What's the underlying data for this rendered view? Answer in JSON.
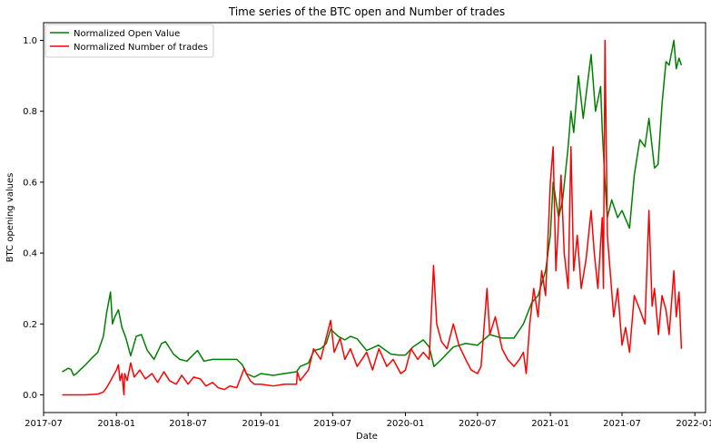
{
  "chart_data": {
    "type": "line",
    "title": "Time series of the BTC open and Number of trades",
    "xlabel": "Date",
    "ylabel": "BTC opening values",
    "xlim": [
      "2017-07-01",
      "2022-01-28"
    ],
    "ylim": [
      -0.05,
      1.05
    ],
    "x_ticks": [
      "2017-07",
      "2018-01",
      "2018-07",
      "2019-01",
      "2019-07",
      "2020-01",
      "2020-07",
      "2021-01",
      "2021-07",
      "2022-01"
    ],
    "x_tick_labels": [
      "2017-07",
      "2018-01",
      "2018-07",
      "2019-01",
      "2019-07",
      "2020-01",
      "2020-07",
      "2021-01",
      "2021-07",
      "2022-01"
    ],
    "y_ticks": [
      0.0,
      0.2,
      0.4,
      0.6,
      0.8,
      1.0
    ],
    "y_tick_labels": [
      "0.0",
      "0.2",
      "0.4",
      "0.6",
      "0.8",
      "1.0"
    ],
    "grid": false,
    "legend_position": "top-left",
    "series": [
      {
        "name": "Normalized Open Value",
        "color": "#008000",
        "points": [
          [
            "2017-08-17",
            0.065
          ],
          [
            "2017-08-25",
            0.07
          ],
          [
            "2017-09-01",
            0.075
          ],
          [
            "2017-09-08",
            0.072
          ],
          [
            "2017-09-15",
            0.055
          ],
          [
            "2017-09-22",
            0.06
          ],
          [
            "2017-10-01",
            0.07
          ],
          [
            "2017-10-15",
            0.085
          ],
          [
            "2017-11-01",
            0.105
          ],
          [
            "2017-11-15",
            0.12
          ],
          [
            "2017-11-29",
            0.165
          ],
          [
            "2017-12-07",
            0.23
          ],
          [
            "2017-12-17",
            0.29
          ],
          [
            "2017-12-22",
            0.2
          ],
          [
            "2017-12-28",
            0.22
          ],
          [
            "2018-01-06",
            0.24
          ],
          [
            "2018-01-15",
            0.19
          ],
          [
            "2018-01-25",
            0.16
          ],
          [
            "2018-02-06",
            0.11
          ],
          [
            "2018-02-20",
            0.165
          ],
          [
            "2018-03-05",
            0.17
          ],
          [
            "2018-03-20",
            0.125
          ],
          [
            "2018-04-06",
            0.1
          ],
          [
            "2018-04-25",
            0.145
          ],
          [
            "2018-05-05",
            0.15
          ],
          [
            "2018-05-25",
            0.115
          ],
          [
            "2018-06-10",
            0.1
          ],
          [
            "2018-06-28",
            0.095
          ],
          [
            "2018-07-25",
            0.125
          ],
          [
            "2018-08-10",
            0.095
          ],
          [
            "2018-09-01",
            0.1
          ],
          [
            "2018-10-01",
            0.1
          ],
          [
            "2018-11-01",
            0.1
          ],
          [
            "2018-11-15",
            0.085
          ],
          [
            "2018-11-25",
            0.06
          ],
          [
            "2018-12-15",
            0.05
          ],
          [
            "2019-01-01",
            0.06
          ],
          [
            "2019-02-01",
            0.055
          ],
          [
            "2019-03-01",
            0.06
          ],
          [
            "2019-04-01",
            0.065
          ],
          [
            "2019-04-10",
            0.08
          ],
          [
            "2019-05-01",
            0.09
          ],
          [
            "2019-05-15",
            0.125
          ],
          [
            "2019-06-01",
            0.13
          ],
          [
            "2019-06-15",
            0.145
          ],
          [
            "2019-06-26",
            0.185
          ],
          [
            "2019-07-15",
            0.165
          ],
          [
            "2019-08-01",
            0.155
          ],
          [
            "2019-08-15",
            0.165
          ],
          [
            "2019-09-01",
            0.158
          ],
          [
            "2019-09-25",
            0.125
          ],
          [
            "2019-10-25",
            0.14
          ],
          [
            "2019-11-25",
            0.115
          ],
          [
            "2019-12-15",
            0.112
          ],
          [
            "2020-01-01",
            0.112
          ],
          [
            "2020-01-20",
            0.135
          ],
          [
            "2020-02-15",
            0.155
          ],
          [
            "2020-03-01",
            0.135
          ],
          [
            "2020-03-13",
            0.08
          ],
          [
            "2020-04-01",
            0.1
          ],
          [
            "2020-05-01",
            0.135
          ],
          [
            "2020-06-01",
            0.145
          ],
          [
            "2020-07-01",
            0.14
          ],
          [
            "2020-08-01",
            0.17
          ],
          [
            "2020-09-01",
            0.16
          ],
          [
            "2020-10-01",
            0.16
          ],
          [
            "2020-10-25",
            0.2
          ],
          [
            "2020-11-15",
            0.26
          ],
          [
            "2020-12-01",
            0.28
          ],
          [
            "2020-12-20",
            0.35
          ],
          [
            "2021-01-01",
            0.45
          ],
          [
            "2021-01-08",
            0.6
          ],
          [
            "2021-01-22",
            0.5
          ],
          [
            "2021-02-01",
            0.55
          ],
          [
            "2021-02-15",
            0.7
          ],
          [
            "2021-02-22",
            0.8
          ],
          [
            "2021-03-01",
            0.74
          ],
          [
            "2021-03-13",
            0.9
          ],
          [
            "2021-03-25",
            0.78
          ],
          [
            "2021-04-05",
            0.88
          ],
          [
            "2021-04-14",
            0.96
          ],
          [
            "2021-04-25",
            0.8
          ],
          [
            "2021-05-08",
            0.87
          ],
          [
            "2021-05-12",
            0.75
          ],
          [
            "2021-05-19",
            0.6
          ],
          [
            "2021-05-25",
            0.5
          ],
          [
            "2021-06-05",
            0.55
          ],
          [
            "2021-06-20",
            0.5
          ],
          [
            "2021-07-01",
            0.52
          ],
          [
            "2021-07-20",
            0.47
          ],
          [
            "2021-08-01",
            0.62
          ],
          [
            "2021-08-15",
            0.72
          ],
          [
            "2021-08-28",
            0.7
          ],
          [
            "2021-09-07",
            0.78
          ],
          [
            "2021-09-21",
            0.64
          ],
          [
            "2021-09-30",
            0.65
          ],
          [
            "2021-10-10",
            0.82
          ],
          [
            "2021-10-20",
            0.94
          ],
          [
            "2021-10-28",
            0.93
          ],
          [
            "2021-11-09",
            1.0
          ],
          [
            "2021-11-15",
            0.92
          ],
          [
            "2021-11-22",
            0.95
          ],
          [
            "2021-11-28",
            0.93
          ]
        ]
      },
      {
        "name": "Normalized Number of trades",
        "color": "#ff0000",
        "points": [
          [
            "2017-08-17",
            0.0
          ],
          [
            "2017-09-15",
            0.0
          ],
          [
            "2017-10-15",
            0.0
          ],
          [
            "2017-11-15",
            0.002
          ],
          [
            "2017-11-29",
            0.008
          ],
          [
            "2017-12-07",
            0.02
          ],
          [
            "2017-12-15",
            0.035
          ],
          [
            "2017-12-22",
            0.05
          ],
          [
            "2018-01-01",
            0.07
          ],
          [
            "2018-01-06",
            0.085
          ],
          [
            "2018-01-10",
            0.04
          ],
          [
            "2018-01-15",
            0.06
          ],
          [
            "2018-01-20",
            0.0
          ],
          [
            "2018-01-22",
            0.06
          ],
          [
            "2018-01-28",
            0.04
          ],
          [
            "2018-02-06",
            0.09
          ],
          [
            "2018-02-15",
            0.05
          ],
          [
            "2018-03-01",
            0.07
          ],
          [
            "2018-03-15",
            0.045
          ],
          [
            "2018-04-01",
            0.06
          ],
          [
            "2018-04-15",
            0.035
          ],
          [
            "2018-05-01",
            0.065
          ],
          [
            "2018-05-15",
            0.04
          ],
          [
            "2018-06-01",
            0.03
          ],
          [
            "2018-06-15",
            0.055
          ],
          [
            "2018-07-01",
            0.03
          ],
          [
            "2018-07-15",
            0.05
          ],
          [
            "2018-08-01",
            0.045
          ],
          [
            "2018-08-15",
            0.025
          ],
          [
            "2018-09-01",
            0.035
          ],
          [
            "2018-09-15",
            0.02
          ],
          [
            "2018-10-01",
            0.015
          ],
          [
            "2018-10-15",
            0.025
          ],
          [
            "2018-11-01",
            0.02
          ],
          [
            "2018-11-20",
            0.075
          ],
          [
            "2018-11-25",
            0.06
          ],
          [
            "2018-12-05",
            0.04
          ],
          [
            "2018-12-15",
            0.03
          ],
          [
            "2019-01-01",
            0.03
          ],
          [
            "2019-02-01",
            0.025
          ],
          [
            "2019-03-01",
            0.03
          ],
          [
            "2019-04-01",
            0.03
          ],
          [
            "2019-04-03",
            0.065
          ],
          [
            "2019-04-10",
            0.04
          ],
          [
            "2019-05-01",
            0.07
          ],
          [
            "2019-05-14",
            0.13
          ],
          [
            "2019-06-01",
            0.1
          ],
          [
            "2019-06-26",
            0.21
          ],
          [
            "2019-07-05",
            0.12
          ],
          [
            "2019-07-20",
            0.16
          ],
          [
            "2019-08-01",
            0.1
          ],
          [
            "2019-08-15",
            0.13
          ],
          [
            "2019-09-01",
            0.08
          ],
          [
            "2019-09-25",
            0.12
          ],
          [
            "2019-10-10",
            0.07
          ],
          [
            "2019-10-26",
            0.13
          ],
          [
            "2019-11-15",
            0.08
          ],
          [
            "2019-12-01",
            0.1
          ],
          [
            "2019-12-20",
            0.06
          ],
          [
            "2020-01-01",
            0.07
          ],
          [
            "2020-01-15",
            0.13
          ],
          [
            "2020-02-01",
            0.1
          ],
          [
            "2020-02-15",
            0.12
          ],
          [
            "2020-03-01",
            0.1
          ],
          [
            "2020-03-12",
            0.365
          ],
          [
            "2020-03-20",
            0.2
          ],
          [
            "2020-04-01",
            0.15
          ],
          [
            "2020-04-15",
            0.13
          ],
          [
            "2020-05-01",
            0.2
          ],
          [
            "2020-05-15",
            0.14
          ],
          [
            "2020-06-01",
            0.1
          ],
          [
            "2020-06-15",
            0.07
          ],
          [
            "2020-07-01",
            0.06
          ],
          [
            "2020-07-10",
            0.08
          ],
          [
            "2020-07-25",
            0.3
          ],
          [
            "2020-08-01",
            0.17
          ],
          [
            "2020-08-15",
            0.22
          ],
          [
            "2020-09-01",
            0.13
          ],
          [
            "2020-09-15",
            0.1
          ],
          [
            "2020-10-01",
            0.08
          ],
          [
            "2020-10-15",
            0.1
          ],
          [
            "2020-10-25",
            0.12
          ],
          [
            "2020-11-01",
            0.06
          ],
          [
            "2020-11-10",
            0.2
          ],
          [
            "2020-11-20",
            0.3
          ],
          [
            "2020-12-01",
            0.22
          ],
          [
            "2020-12-10",
            0.35
          ],
          [
            "2020-12-20",
            0.28
          ],
          [
            "2021-01-01",
            0.6
          ],
          [
            "2021-01-08",
            0.7
          ],
          [
            "2021-01-15",
            0.35
          ],
          [
            "2021-01-28",
            0.62
          ],
          [
            "2021-02-05",
            0.4
          ],
          [
            "2021-02-15",
            0.3
          ],
          [
            "2021-02-22",
            0.7
          ],
          [
            "2021-03-01",
            0.35
          ],
          [
            "2021-03-10",
            0.45
          ],
          [
            "2021-03-20",
            0.3
          ],
          [
            "2021-04-01",
            0.38
          ],
          [
            "2021-04-14",
            0.52
          ],
          [
            "2021-04-22",
            0.4
          ],
          [
            "2021-05-01",
            0.3
          ],
          [
            "2021-05-12",
            0.5
          ],
          [
            "2021-05-15",
            0.3
          ],
          [
            "2021-05-19",
            1.0
          ],
          [
            "2021-05-25",
            0.45
          ],
          [
            "2021-06-01",
            0.35
          ],
          [
            "2021-06-10",
            0.22
          ],
          [
            "2021-06-20",
            0.3
          ],
          [
            "2021-07-01",
            0.14
          ],
          [
            "2021-07-10",
            0.19
          ],
          [
            "2021-07-20",
            0.12
          ],
          [
            "2021-08-01",
            0.28
          ],
          [
            "2021-08-15",
            0.24
          ],
          [
            "2021-08-28",
            0.2
          ],
          [
            "2021-09-07",
            0.52
          ],
          [
            "2021-09-15",
            0.25
          ],
          [
            "2021-09-21",
            0.3
          ],
          [
            "2021-10-01",
            0.17
          ],
          [
            "2021-10-10",
            0.28
          ],
          [
            "2021-10-20",
            0.24
          ],
          [
            "2021-10-28",
            0.17
          ],
          [
            "2021-11-09",
            0.35
          ],
          [
            "2021-11-15",
            0.22
          ],
          [
            "2021-11-22",
            0.29
          ],
          [
            "2021-11-28",
            0.13
          ]
        ]
      }
    ]
  }
}
